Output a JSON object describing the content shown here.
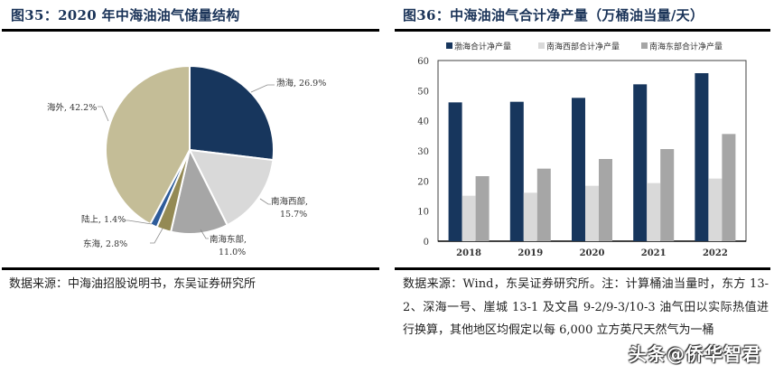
{
  "left_figure": {
    "title": "图35：2020 年中海油油气储量结构",
    "source": "数据来源：中海油招股说明书，东吴证券研究所"
  },
  "right_figure": {
    "title": "图36：中海油油气合计净产量（万桶油当量/天）",
    "source": "数据来源：Wind，东吴证券研究所。注：计算桶油当量时，东方 13-2、深海一号、崖城 13-1 及文昌 9-2/9-3/10-3 油气田以实际热值进行换算，其他地区均假定以每 6,000 立方英尺天然气为一桶"
  },
  "watermark": "头条@侨华智君",
  "colors": {
    "navy": "#17365d",
    "light_gray": "#d9d9d9",
    "mid_gray": "#a6a6a6",
    "tan": "#c4bd97",
    "olive": "#948a54",
    "blue": "#2e5c9a"
  },
  "chart_data": [
    {
      "type": "pie",
      "title": "2020 年中海油油气储量结构",
      "categories": [
        "渤海",
        "南海西部",
        "南海东部",
        "东海",
        "陆上",
        "海外"
      ],
      "values": [
        26.9,
        15.7,
        11.0,
        2.8,
        1.4,
        42.2
      ],
      "unit": "%",
      "labels": [
        "渤海, 26.9%",
        "南海西部, 15.7%",
        "南海东部, 11.0%",
        "东海, 2.8%",
        "陆上, 1.4%",
        "海外, 42.2%"
      ],
      "colors": [
        "#17365d",
        "#d9d9d9",
        "#a6a6a6",
        "#948a54",
        "#2e5c9a",
        "#c4bd97"
      ]
    },
    {
      "type": "bar",
      "title": "中海油油气合计净产量（万桶油当量/天）",
      "categories": [
        "2018",
        "2019",
        "2020",
        "2021",
        "2022"
      ],
      "series": [
        {
          "name": "渤海合计净产量",
          "values": [
            46.1,
            46.3,
            47.6,
            52.1,
            55.8
          ],
          "color": "#17365d"
        },
        {
          "name": "南海西部合计净产量",
          "values": [
            15.1,
            16.1,
            18.4,
            19.3,
            20.8
          ],
          "color": "#d9d9d9"
        },
        {
          "name": "南海东部合计净产量",
          "values": [
            21.6,
            24.1,
            27.3,
            30.6,
            35.6
          ],
          "color": "#a6a6a6"
        }
      ],
      "xlabel": "",
      "ylabel": "",
      "ylim": [
        0,
        60
      ],
      "yticks": [
        0,
        10,
        20,
        30,
        40,
        50,
        60
      ],
      "grid": false,
      "legend_position": "top"
    }
  ]
}
